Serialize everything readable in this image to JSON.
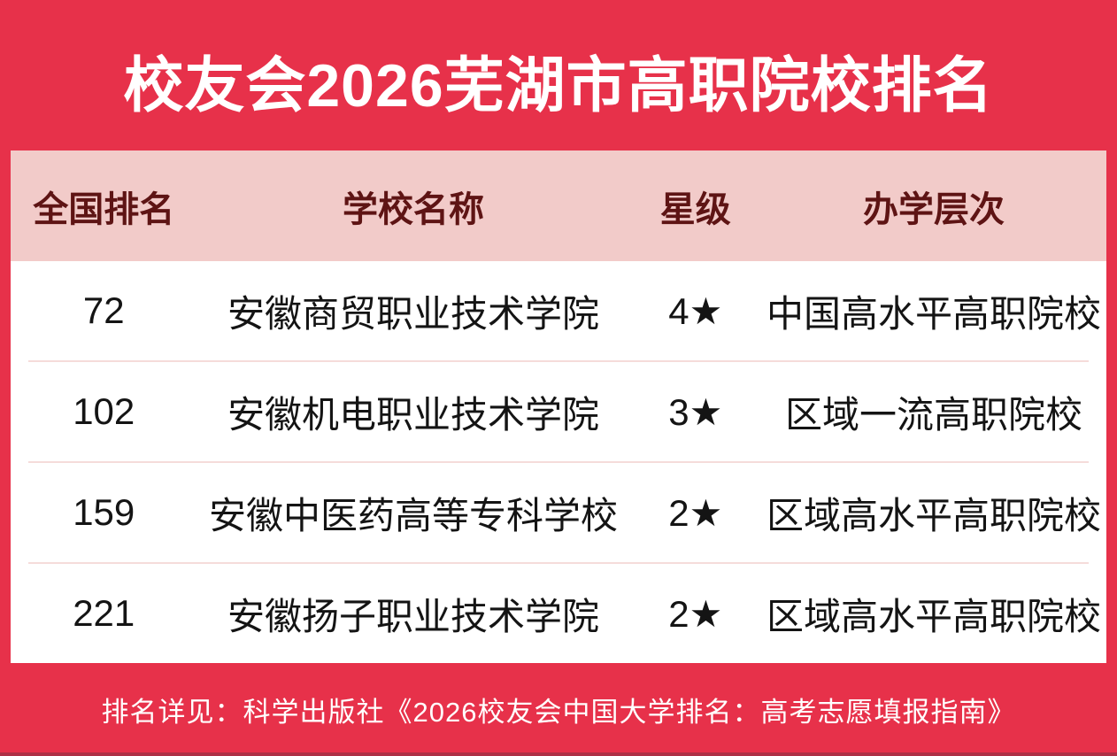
{
  "chart_data": {
    "type": "table",
    "title": "校友会2026芜湖市高职院校排名",
    "columns": [
      "全国排名",
      "学校名称",
      "星级",
      "办学层次"
    ],
    "rows": [
      {
        "rank": "72",
        "school": "安徽商贸职业技术学院",
        "stars": "4★",
        "level": "中国高水平高职院校"
      },
      {
        "rank": "102",
        "school": "安徽机电职业技术学院",
        "stars": "3★",
        "level": "区域一流高职院校"
      },
      {
        "rank": "159",
        "school": "安徽中医药高等专科学校",
        "stars": "2★",
        "level": "区域高水平高职院校"
      },
      {
        "rank": "221",
        "school": "安徽扬子职业技术学院",
        "stars": "2★",
        "level": "区域高水平高职院校"
      }
    ],
    "footnote": "排名详见：科学出版社《2026校友会中国大学排名：高考志愿填报指南》"
  },
  "colors": {
    "background_red": "#E7314A",
    "header_pink": "#F2CBC9",
    "header_text": "#5E1414",
    "row_text": "#141414",
    "title_text": "#FFFFFF"
  }
}
